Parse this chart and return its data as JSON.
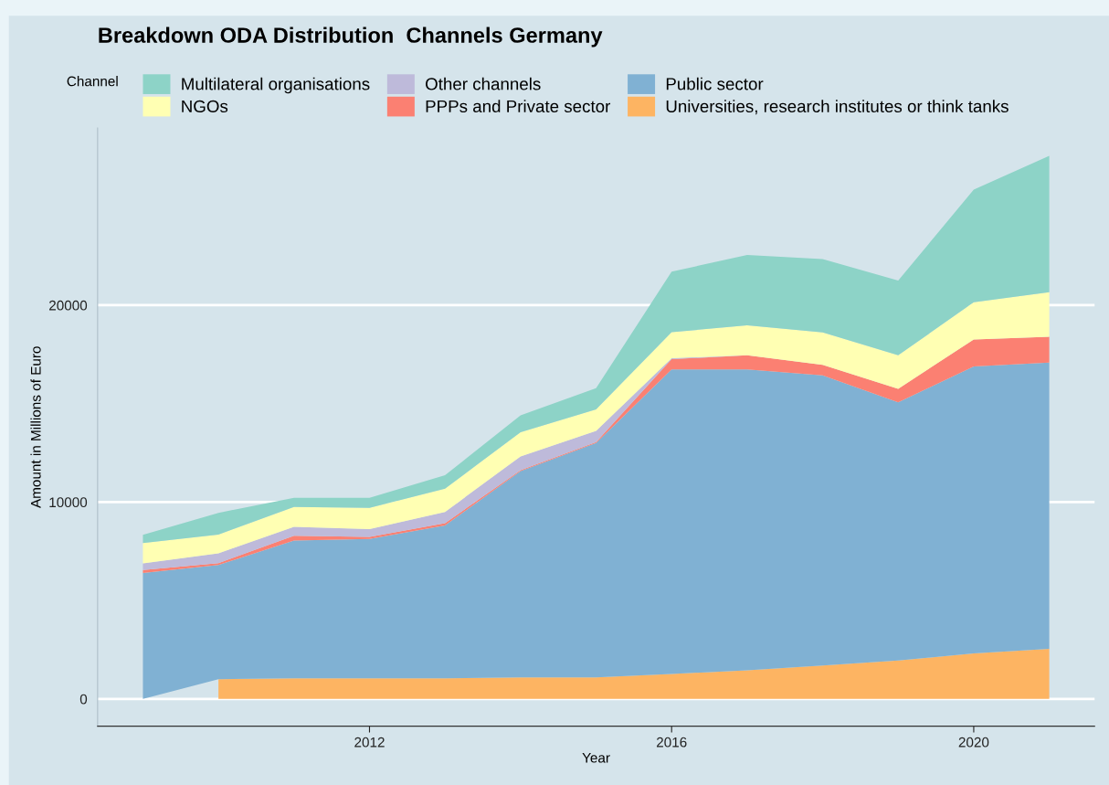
{
  "chart_data": {
    "type": "area",
    "stacked": true,
    "title": "Breakdown ODA Distribution  Channels Germany",
    "xlabel": "Year",
    "ylabel": "Amount in Millions of Euro",
    "legend_title": "Channel",
    "legend": "top",
    "x": [
      2009,
      2010,
      2011,
      2012,
      2013,
      2014,
      2015,
      2016,
      2017,
      2018,
      2019,
      2020,
      2021
    ],
    "series": [
      {
        "name": "Universities, research institutes or think tanks",
        "color": "#fdb462",
        "values": [
          null,
          1000,
          1050,
          1050,
          1050,
          1100,
          1100,
          1270,
          1460,
          1700,
          1950,
          2310,
          2550
        ]
      },
      {
        "name": "Public sector",
        "color": "#80b1d3",
        "values": [
          6400,
          5800,
          7000,
          7080,
          7760,
          10470,
          11900,
          15470,
          15280,
          14740,
          13110,
          14580,
          14530
        ]
      },
      {
        "name": "PPPs and Private sector",
        "color": "#fb8072",
        "values": [
          150,
          100,
          240,
          100,
          120,
          50,
          50,
          520,
          710,
          530,
          690,
          1370,
          1320
        ]
      },
      {
        "name": "Other channels",
        "color": "#bebada",
        "values": [
          330,
          500,
          450,
          400,
          570,
          700,
          570,
          50,
          0,
          0,
          0,
          0,
          0
        ]
      },
      {
        "name": "NGOs",
        "color": "#ffffb3",
        "values": [
          1040,
          950,
          1010,
          1070,
          1180,
          1230,
          1080,
          1320,
          1520,
          1650,
          1700,
          1890,
          2260
        ]
      },
      {
        "name": "Multilateral organisations",
        "color": "#8dd3c7",
        "values": [
          420,
          1100,
          470,
          520,
          680,
          850,
          1080,
          3070,
          3580,
          3720,
          3800,
          5720,
          6930
        ]
      }
    ],
    "xlim": [
      2008.4,
      2021.6
    ],
    "xticks": [
      2012,
      2016,
      2020
    ],
    "ylim": [
      -1380,
      29000
    ],
    "yticks": [
      0,
      10000,
      20000
    ],
    "grid": "y"
  }
}
